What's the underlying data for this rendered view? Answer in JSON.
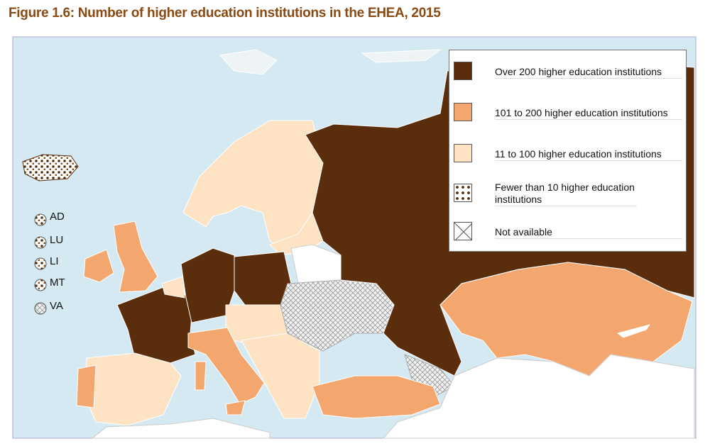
{
  "title": "Figure 1.6: Number of higher education institutions in the EHEA, 2015",
  "legend": [
    "Over 200 higher education institutions",
    "101 to 200 higher education institutions",
    "11 to 100 higher education institutions",
    "Fewer than 10 higher education institutions",
    "Not available"
  ],
  "small_states": [
    "AD",
    "LU",
    "LI",
    "MT",
    "VA"
  ]
}
